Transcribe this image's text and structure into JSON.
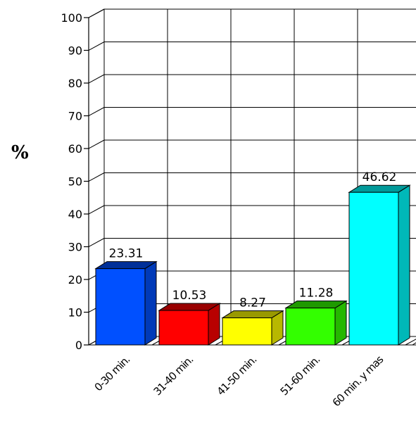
{
  "chart_data": {
    "type": "bar",
    "categories": [
      "0-30 min.",
      "31-40 min.",
      "41-50 min.",
      "51-60 min.",
      "60 min. y mas"
    ],
    "values": [
      23.31,
      10.53,
      8.27,
      11.28,
      46.62
    ],
    "value_labels": [
      "23.31",
      "10.53",
      "8.27",
      "11.28",
      "46.62"
    ],
    "title": "",
    "xlabel": "",
    "ylabel": "%",
    "ylim": [
      0,
      100
    ],
    "yticks": [
      0,
      10,
      20,
      30,
      40,
      50,
      60,
      70,
      80,
      90,
      100
    ],
    "grid": true,
    "style": "3d",
    "colors": [
      "#0050ff",
      "#ff0000",
      "#ffff00",
      "#33ff00",
      "#00ffff"
    ]
  }
}
